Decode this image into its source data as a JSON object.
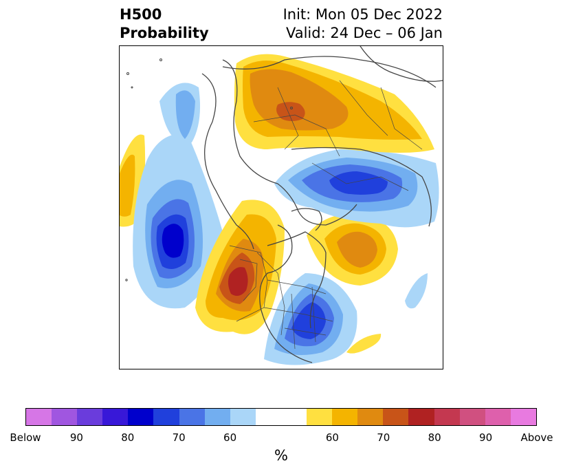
{
  "title": {
    "left_line1": "H500",
    "left_line2": "Probability",
    "right_line1": "Init: Mon 05 Dec 2022",
    "right_line2": "Valid: 24 Dec – 06 Jan"
  },
  "map": {
    "projection": "north-polar-stereographic",
    "land_color": "#ffffff",
    "border_color": "#444444",
    "features": [
      {
        "name": "blue-anomaly-north-pacific",
        "category": "below",
        "peak_percent": 80
      },
      {
        "name": "red-anomaly-western-north-america",
        "category": "above",
        "peak_percent": 80
      },
      {
        "name": "blue-anomaly-eastern-north-america",
        "category": "below",
        "peak_percent": 80
      },
      {
        "name": "orange-anomaly-north-atlantic",
        "category": "above",
        "peak_percent": 70
      },
      {
        "name": "blue-anomaly-siberia",
        "category": "below",
        "peak_percent": 70
      },
      {
        "name": "orange-anomaly-europe-russia",
        "category": "above",
        "peak_percent": 75
      }
    ]
  },
  "colorbar": {
    "unit_label": "%",
    "colors": [
      "#d676e6",
      "#a056e0",
      "#6a3cdc",
      "#3818d8",
      "#0000cc",
      "#2040dc",
      "#4a74e6",
      "#72aef0",
      "#aad6f8",
      "#ffffff",
      "#ffffff",
      "#ffe040",
      "#f4b400",
      "#e08a10",
      "#c85418",
      "#b02222",
      "#c43850",
      "#d05080",
      "#de60ac",
      "#e87ae0"
    ],
    "ticks": [
      "Below",
      "90",
      "80",
      "70",
      "60",
      "60",
      "70",
      "80",
      "90",
      "Above"
    ]
  }
}
